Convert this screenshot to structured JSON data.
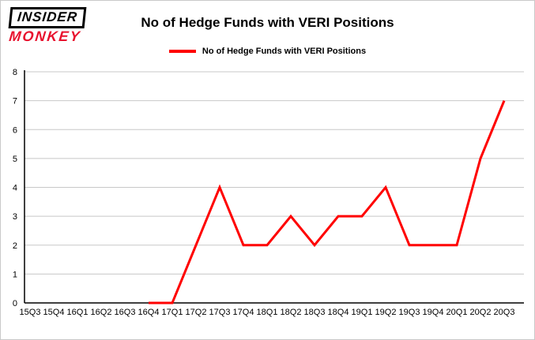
{
  "logo": {
    "line1": "INSIDER",
    "line2": "MONKEY",
    "accent_color": "#e8112d"
  },
  "title": "No of Hedge Funds with VERI Positions",
  "legend": {
    "label": "No of Hedge Funds with VERI Positions",
    "line_color": "#ff0000"
  },
  "chart_data": {
    "type": "line",
    "title": "No of Hedge Funds with VERI Positions",
    "categories": [
      "15Q3",
      "15Q4",
      "16Q1",
      "16Q2",
      "16Q3",
      "16Q4",
      "17Q1",
      "17Q2",
      "17Q3",
      "17Q4",
      "18Q1",
      "18Q2",
      "18Q3",
      "18Q4",
      "19Q1",
      "19Q2",
      "19Q3",
      "19Q4",
      "20Q1",
      "20Q2",
      "20Q3"
    ],
    "series": [
      {
        "name": "No of Hedge Funds with VERI Positions",
        "values": [
          null,
          null,
          null,
          null,
          null,
          0,
          0,
          2,
          4,
          2,
          2,
          3,
          2,
          3,
          3,
          4,
          2,
          2,
          2,
          5,
          7
        ]
      }
    ],
    "xlabel": "",
    "ylabel": "",
    "ylim": [
      0,
      8
    ],
    "yticks": [
      0,
      1,
      2,
      3,
      4,
      5,
      6,
      7,
      8
    ],
    "grid": true,
    "grid_color": "#c8c8c8",
    "axis_color": "#000000",
    "line_color": "#ff0000",
    "legend_position": "top"
  }
}
